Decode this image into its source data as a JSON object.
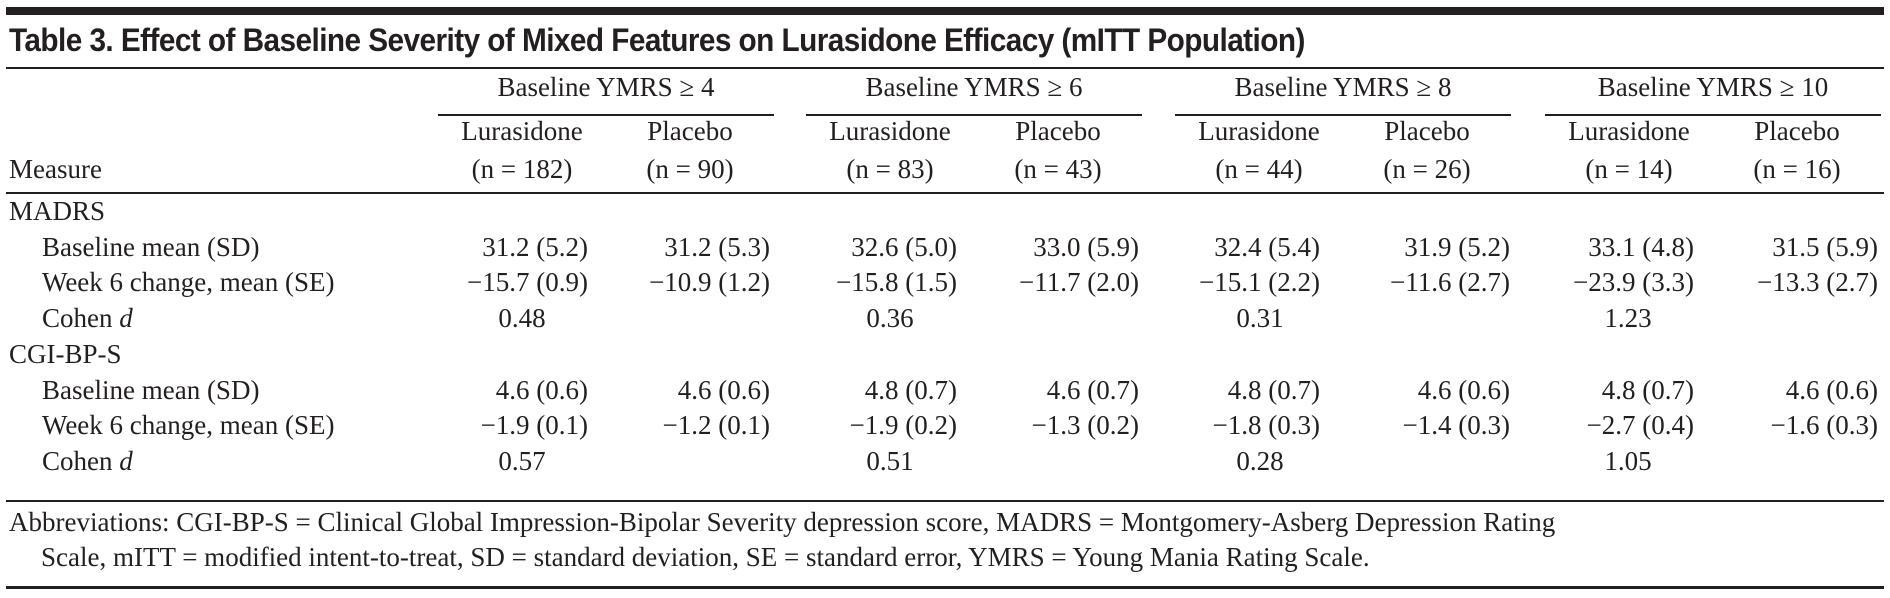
{
  "title": "Table 3. Effect of Baseline Severity of Mixed Features on Lurasidone Efficacy (mITT Population)",
  "header": {
    "measure_label": "Measure",
    "groups": [
      {
        "label": "Baseline YMRS ≥ 4",
        "arms": [
          {
            "name": "Lurasidone",
            "n": "(n = 182)"
          },
          {
            "name": "Placebo",
            "n": "(n = 90)"
          }
        ]
      },
      {
        "label": "Baseline YMRS ≥ 6",
        "arms": [
          {
            "name": "Lurasidone",
            "n": "(n = 83)"
          },
          {
            "name": "Placebo",
            "n": "(n = 43)"
          }
        ]
      },
      {
        "label": "Baseline YMRS ≥ 8",
        "arms": [
          {
            "name": "Lurasidone",
            "n": "(n = 44)"
          },
          {
            "name": "Placebo",
            "n": "(n = 26)"
          }
        ]
      },
      {
        "label": "Baseline YMRS ≥ 10",
        "arms": [
          {
            "name": "Lurasidone",
            "n": "(n = 14)"
          },
          {
            "name": "Placebo",
            "n": "(n = 16)"
          }
        ]
      }
    ]
  },
  "sections": [
    {
      "name": "MADRS",
      "rows": [
        {
          "label": "Baseline mean (SD)",
          "values": [
            "31.2 (5.2)",
            "31.2 (5.3)",
            "32.6 (5.0)",
            "33.0 (5.9)",
            "32.4 (5.4)",
            "31.9 (5.2)",
            "33.1 (4.8)",
            "31.5 (5.9)"
          ]
        },
        {
          "label": "Week 6 change, mean (SE)",
          "values": [
            "−15.7 (0.9)",
            "−10.9 (1.2)",
            "−15.8 (1.5)",
            "−11.7 (2.0)",
            "−15.1 (2.2)",
            "−11.6 (2.7)",
            "−23.9 (3.3)",
            "−13.3 (2.7)"
          ]
        }
      ],
      "cohen": {
        "label": "Cohen ",
        "label_italic": "d",
        "values": [
          "0.48",
          "0.36",
          "0.31",
          "1.23"
        ]
      }
    },
    {
      "name": "CGI-BP-S",
      "rows": [
        {
          "label": "Baseline mean (SD)",
          "values": [
            "4.6 (0.6)",
            "4.6 (0.6)",
            "4.8 (0.7)",
            "4.6 (0.7)",
            "4.8 (0.7)",
            "4.6 (0.6)",
            "4.8 (0.7)",
            "4.6 (0.6)"
          ]
        },
        {
          "label": "Week 6 change, mean (SE)",
          "values": [
            "−1.9 (0.1)",
            "−1.2 (0.1)",
            "−1.9 (0.2)",
            "−1.3 (0.2)",
            "−1.8 (0.3)",
            "−1.4 (0.3)",
            "−2.7 (0.4)",
            "−1.6 (0.3)"
          ]
        }
      ],
      "cohen": {
        "label": "Cohen ",
        "label_italic": "d",
        "values": [
          "0.57",
          "0.51",
          "0.28",
          "1.05"
        ]
      }
    }
  ],
  "footnote": {
    "line1": "Abbreviations: CGI-BP-S = Clinical Global Impression-Bipolar Severity depression score, MADRS = Montgomery-Asberg Depression Rating",
    "line2": "Scale, mITT = modified intent-to-treat, SD = standard deviation, SE = standard error, YMRS = Young Mania Rating Scale."
  }
}
